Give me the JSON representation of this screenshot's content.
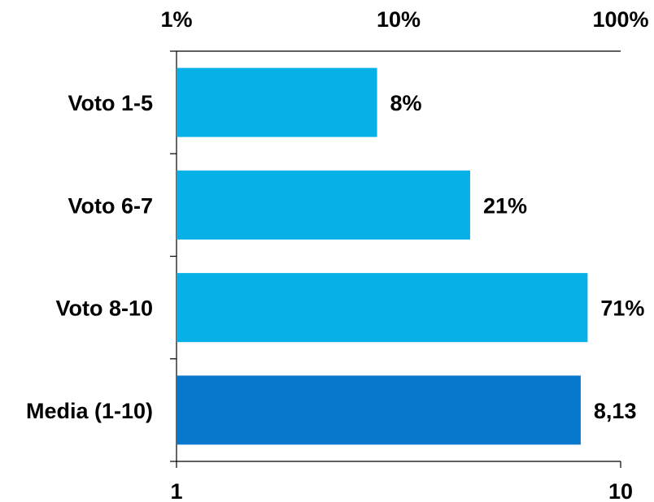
{
  "chart_data": {
    "type": "bar",
    "orientation": "horizontal",
    "categories": [
      "Voto 1-5",
      "Voto 6-7",
      "Voto 8-10",
      "Media (1-10)"
    ],
    "series": [
      {
        "values": [
          8,
          21,
          71,
          null
        ],
        "labels": [
          "8%",
          "21%",
          "71%",
          ""
        ],
        "axis": "top",
        "color": "#08B0E8"
      },
      {
        "values": [
          null,
          null,
          null,
          8.13
        ],
        "labels": [
          "",
          "",
          "",
          "8,13"
        ],
        "axis": "bottom",
        "color": "#0878CC"
      }
    ],
    "top_axis": {
      "scale": "log",
      "range": [
        1,
        100
      ],
      "ticks": [
        1,
        10,
        100
      ],
      "tick_labels": [
        "1%",
        "10%",
        "100%"
      ]
    },
    "bottom_axis": {
      "scale": "log",
      "range": [
        1,
        10
      ],
      "ticks": [
        1,
        10
      ],
      "tick_labels": [
        "1",
        "10"
      ]
    },
    "grid": false,
    "legend": "none"
  }
}
